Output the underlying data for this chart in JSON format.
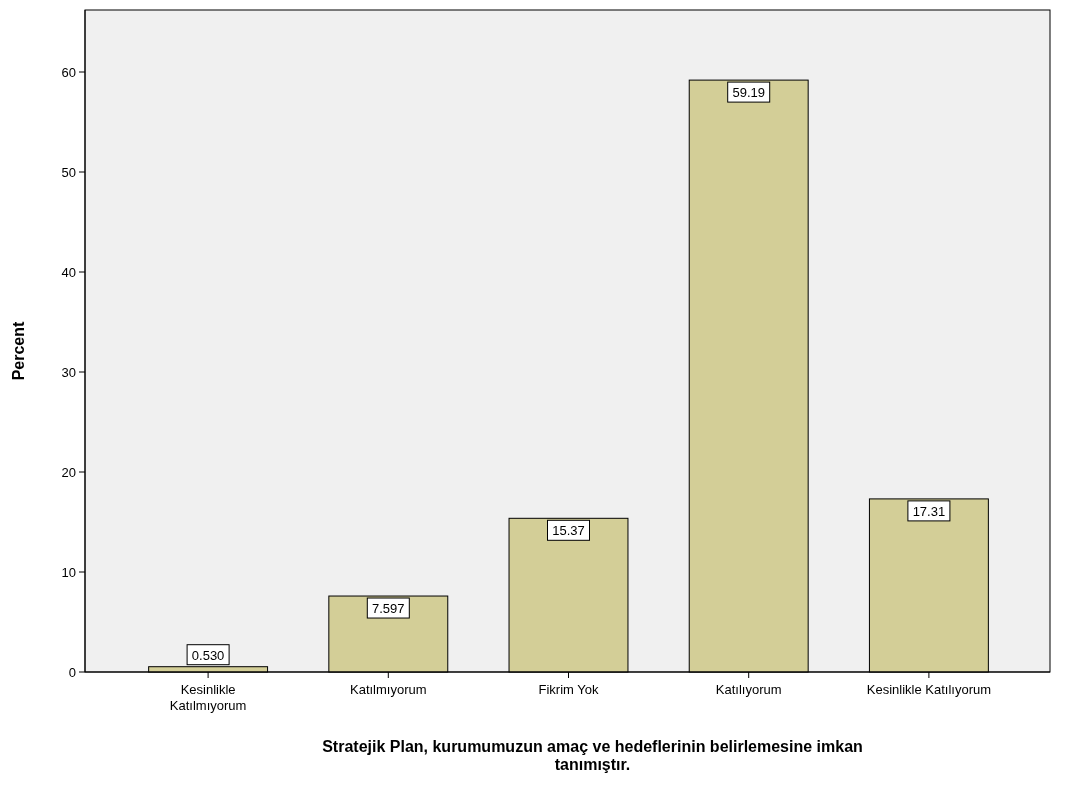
{
  "chart_data": {
    "type": "bar",
    "xlabel": "Stratejik Plan, kurumumuzun amaç ve hedeflerinin belirlemesine imkan tanımıştır.",
    "ylabel": "Percent",
    "categories": [
      "Kesinlikle Katılmıyorum",
      "Katılmıyorum",
      "Fikrim Yok",
      "Katılıyorum",
      "Kesinlikle Katılıyorum"
    ],
    "values": [
      0.53,
      7.597,
      15.37,
      59.19,
      17.31
    ],
    "value_labels": [
      "0.530",
      "7.597",
      "15.37",
      "59.19",
      "17.31"
    ],
    "color": "#d3ce97",
    "ylim": [
      0,
      66.2
    ],
    "yticks": [
      0,
      10,
      20,
      30,
      40,
      50,
      60
    ],
    "grid": false
  }
}
